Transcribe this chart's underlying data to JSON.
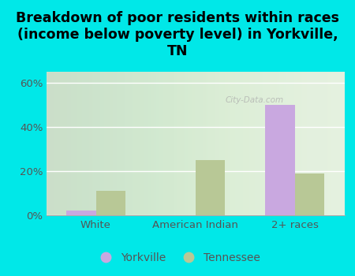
{
  "title": "Breakdown of poor residents within races\n(income below poverty level) in Yorkville,\nTN",
  "categories": [
    "White",
    "American Indian",
    "2+ races"
  ],
  "yorkville_values": [
    2.0,
    0.0,
    50.0
  ],
  "tennessee_values": [
    11.0,
    25.0,
    19.0
  ],
  "yorkville_color": "#c9a8e0",
  "tennessee_color": "#b8c896",
  "background_color": "#00e8e8",
  "plot_bg_top": "#f5faf5",
  "plot_bg_bottom": "#d8ecd8",
  "ylim": [
    0,
    65
  ],
  "yticks": [
    0,
    20,
    40,
    60
  ],
  "ytick_labels": [
    "0%",
    "20%",
    "40%",
    "60%"
  ],
  "bar_width": 0.3,
  "legend_labels": [
    "Yorkville",
    "Tennessee"
  ],
  "title_fontsize": 12.5,
  "tick_fontsize": 9.5,
  "legend_fontsize": 10,
  "watermark": "City-Data.com"
}
